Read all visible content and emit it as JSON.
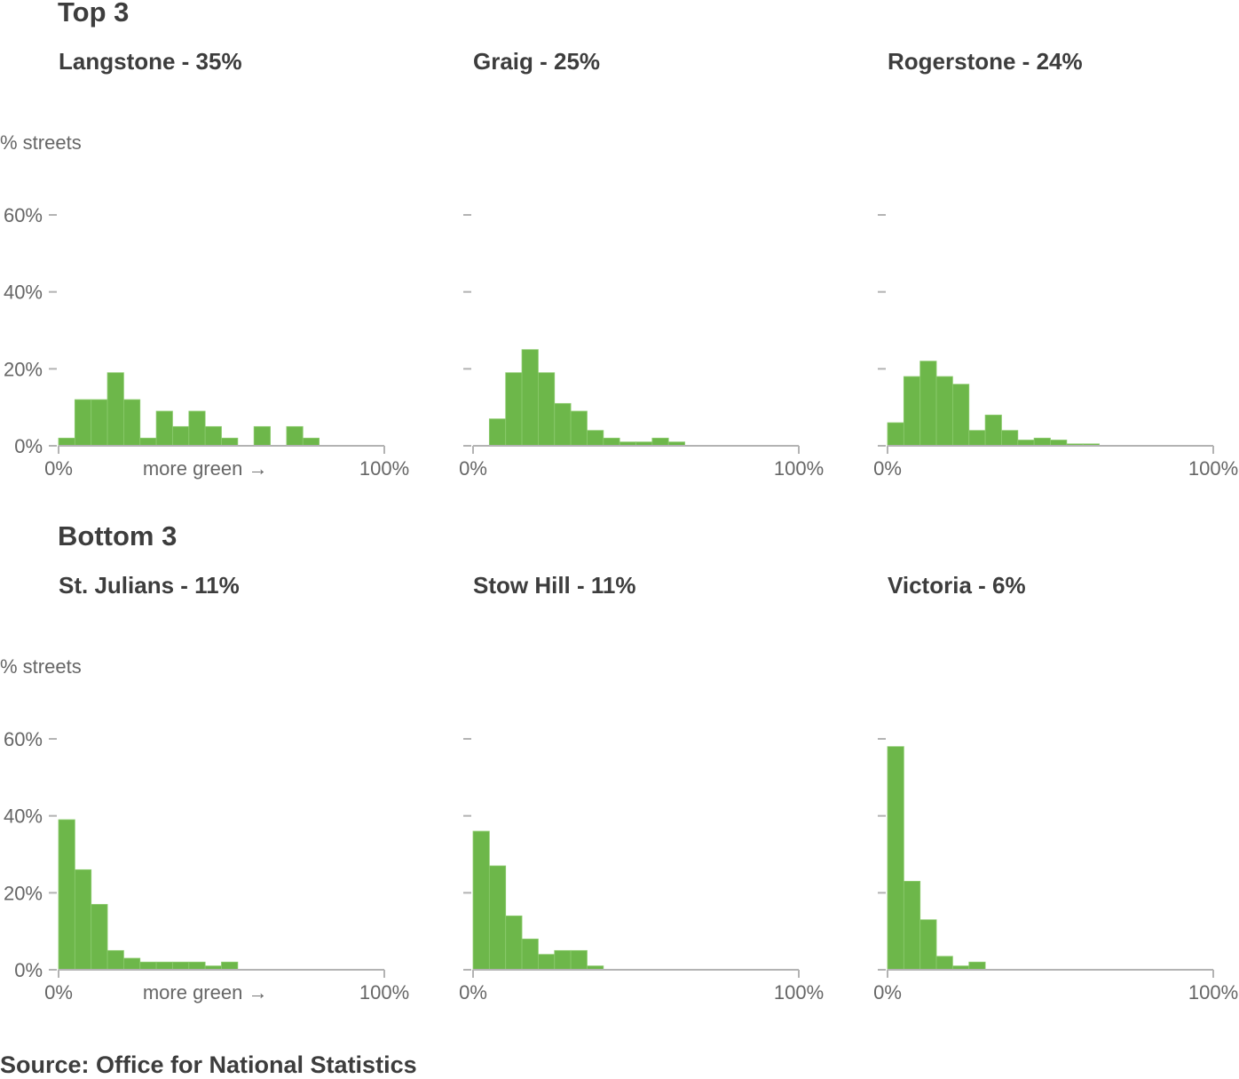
{
  "sections": [
    {
      "title": "Top 3"
    },
    {
      "title": "Bottom 3"
    }
  ],
  "source": "Source: Office for National Statistics",
  "colors": {
    "bar": "#6db74a",
    "bar_edge": "#8ccb6e",
    "axis": "#b3b3b3",
    "text": "#3d3d3d",
    "muted": "#666666"
  },
  "chart_data": [
    {
      "type": "bar",
      "title": "Langstone - 35%",
      "ylabel": "% streets",
      "xlabel": "more green →",
      "x_ticks": [
        "0%",
        "100%"
      ],
      "y_ticks": [
        "0%",
        "20%",
        "40%",
        "60%"
      ],
      "ylim": [
        0,
        60
      ],
      "xlim": [
        0,
        100
      ],
      "bin_width": 5,
      "bin_starts": [
        0,
        5,
        10,
        15,
        20,
        25,
        30,
        35,
        40,
        45,
        50,
        55,
        60,
        65,
        70,
        75,
        80,
        85,
        90,
        95
      ],
      "values": [
        2,
        12,
        12,
        19,
        12,
        2,
        9,
        5,
        9,
        5,
        2,
        0,
        5,
        0,
        5,
        2,
        0,
        0,
        0,
        0
      ]
    },
    {
      "type": "bar",
      "title": "Graig - 25%",
      "ylabel": "",
      "xlabel": "",
      "x_ticks": [
        "0%",
        "100%"
      ],
      "y_ticks": [
        "",
        "",
        "",
        ""
      ],
      "ylim": [
        0,
        60
      ],
      "xlim": [
        0,
        100
      ],
      "bin_width": 5,
      "bin_starts": [
        0,
        5,
        10,
        15,
        20,
        25,
        30,
        35,
        40,
        45,
        50,
        55,
        60,
        65,
        70,
        75,
        80,
        85,
        90,
        95
      ],
      "values": [
        0,
        7,
        19,
        25,
        19,
        11,
        9,
        4,
        2,
        1,
        1,
        2,
        1,
        0,
        0,
        0,
        0,
        0,
        0,
        0
      ]
    },
    {
      "type": "bar",
      "title": "Rogerstone - 24%",
      "ylabel": "",
      "xlabel": "",
      "x_ticks": [
        "0%",
        "100%"
      ],
      "y_ticks": [
        "",
        "",
        "",
        ""
      ],
      "ylim": [
        0,
        60
      ],
      "xlim": [
        0,
        100
      ],
      "bin_width": 5,
      "bin_starts": [
        0,
        5,
        10,
        15,
        20,
        25,
        30,
        35,
        40,
        45,
        50,
        55,
        60,
        65,
        70,
        75,
        80,
        85,
        90,
        95
      ],
      "values": [
        6,
        18,
        22,
        18,
        16,
        4,
        8,
        4,
        1.5,
        2,
        1.5,
        0.5,
        0.5,
        0,
        0,
        0,
        0,
        0,
        0,
        0
      ]
    },
    {
      "type": "bar",
      "title": "St. Julians - 11%",
      "ylabel": "% streets",
      "xlabel": "more green →",
      "x_ticks": [
        "0%",
        "100%"
      ],
      "y_ticks": [
        "0%",
        "20%",
        "40%",
        "60%"
      ],
      "ylim": [
        0,
        60
      ],
      "xlim": [
        0,
        100
      ],
      "bin_width": 5,
      "bin_starts": [
        0,
        5,
        10,
        15,
        20,
        25,
        30,
        35,
        40,
        45,
        50,
        55,
        60,
        65,
        70,
        75,
        80,
        85,
        90,
        95
      ],
      "values": [
        39,
        26,
        17,
        5,
        3,
        2,
        2,
        2,
        2,
        1,
        2,
        0,
        0,
        0,
        0,
        0,
        0,
        0,
        0,
        0
      ]
    },
    {
      "type": "bar",
      "title": "Stow Hill - 11%",
      "ylabel": "",
      "xlabel": "",
      "x_ticks": [
        "0%",
        "100%"
      ],
      "y_ticks": [
        "",
        "",
        "",
        ""
      ],
      "ylim": [
        0,
        60
      ],
      "xlim": [
        0,
        100
      ],
      "bin_width": 5,
      "bin_starts": [
        0,
        5,
        10,
        15,
        20,
        25,
        30,
        35,
        40,
        45,
        50,
        55,
        60,
        65,
        70,
        75,
        80,
        85,
        90,
        95
      ],
      "values": [
        36,
        27,
        14,
        8,
        4,
        5,
        5,
        1,
        0,
        0,
        0,
        0,
        0,
        0,
        0,
        0,
        0,
        0,
        0,
        0
      ]
    },
    {
      "type": "bar",
      "title": "Victoria - 6%",
      "ylabel": "",
      "xlabel": "",
      "x_ticks": [
        "0%",
        "100%"
      ],
      "y_ticks": [
        "",
        "",
        "",
        ""
      ],
      "ylim": [
        0,
        60
      ],
      "xlim": [
        0,
        100
      ],
      "bin_width": 5,
      "bin_starts": [
        0,
        5,
        10,
        15,
        20,
        25,
        30,
        35,
        40,
        45,
        50,
        55,
        60,
        65,
        70,
        75,
        80,
        85,
        90,
        95
      ],
      "values": [
        58,
        23,
        13,
        3.5,
        1,
        2,
        0,
        0,
        0,
        0,
        0,
        0,
        0,
        0,
        0,
        0,
        0,
        0,
        0,
        0
      ]
    }
  ]
}
